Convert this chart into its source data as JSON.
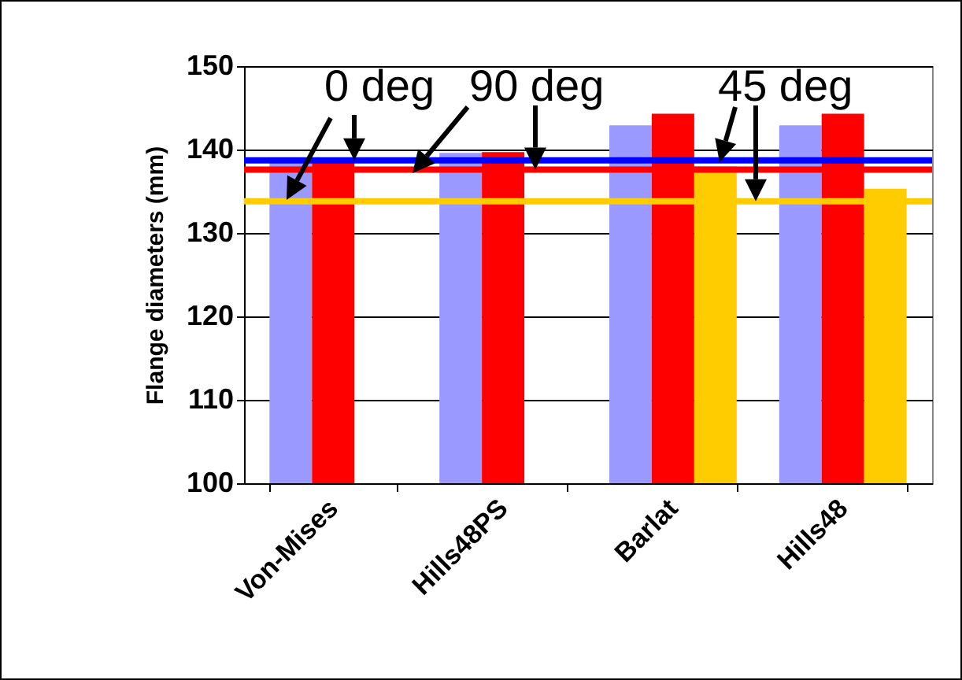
{
  "chart_data": {
    "type": "bar",
    "ylabel": "Flange diameters (mm)",
    "categories": [
      "Von-Mises",
      "Hills48PS",
      "Barlat",
      "Hills48"
    ],
    "series": [
      {
        "color": "#9999ff",
        "values": [
          138.8,
          139.6,
          142.9,
          142.9
        ]
      },
      {
        "color": "#ff0000",
        "values": [
          138.9,
          139.7,
          144.3,
          144.3
        ]
      },
      {
        "color": "#ffcc00",
        "values": [
          null,
          null,
          138.0,
          135.3
        ]
      }
    ],
    "ylim": [
      100,
      150
    ],
    "yticks": [
      100,
      110,
      120,
      130,
      140,
      150
    ],
    "grid": "y",
    "ref_lines": [
      {
        "axis": "y",
        "value": 138.7,
        "color": "#0000ff"
      },
      {
        "axis": "y",
        "value": 137.6,
        "color": "#ff0000"
      },
      {
        "axis": "y",
        "value": 133.8,
        "color": "#ffcc00"
      }
    ],
    "annotations": [
      {
        "text": "0 deg",
        "y": 138.7
      },
      {
        "text": "90 deg",
        "y": 137.6
      },
      {
        "text": "45 deg",
        "y": 133.8
      }
    ]
  }
}
